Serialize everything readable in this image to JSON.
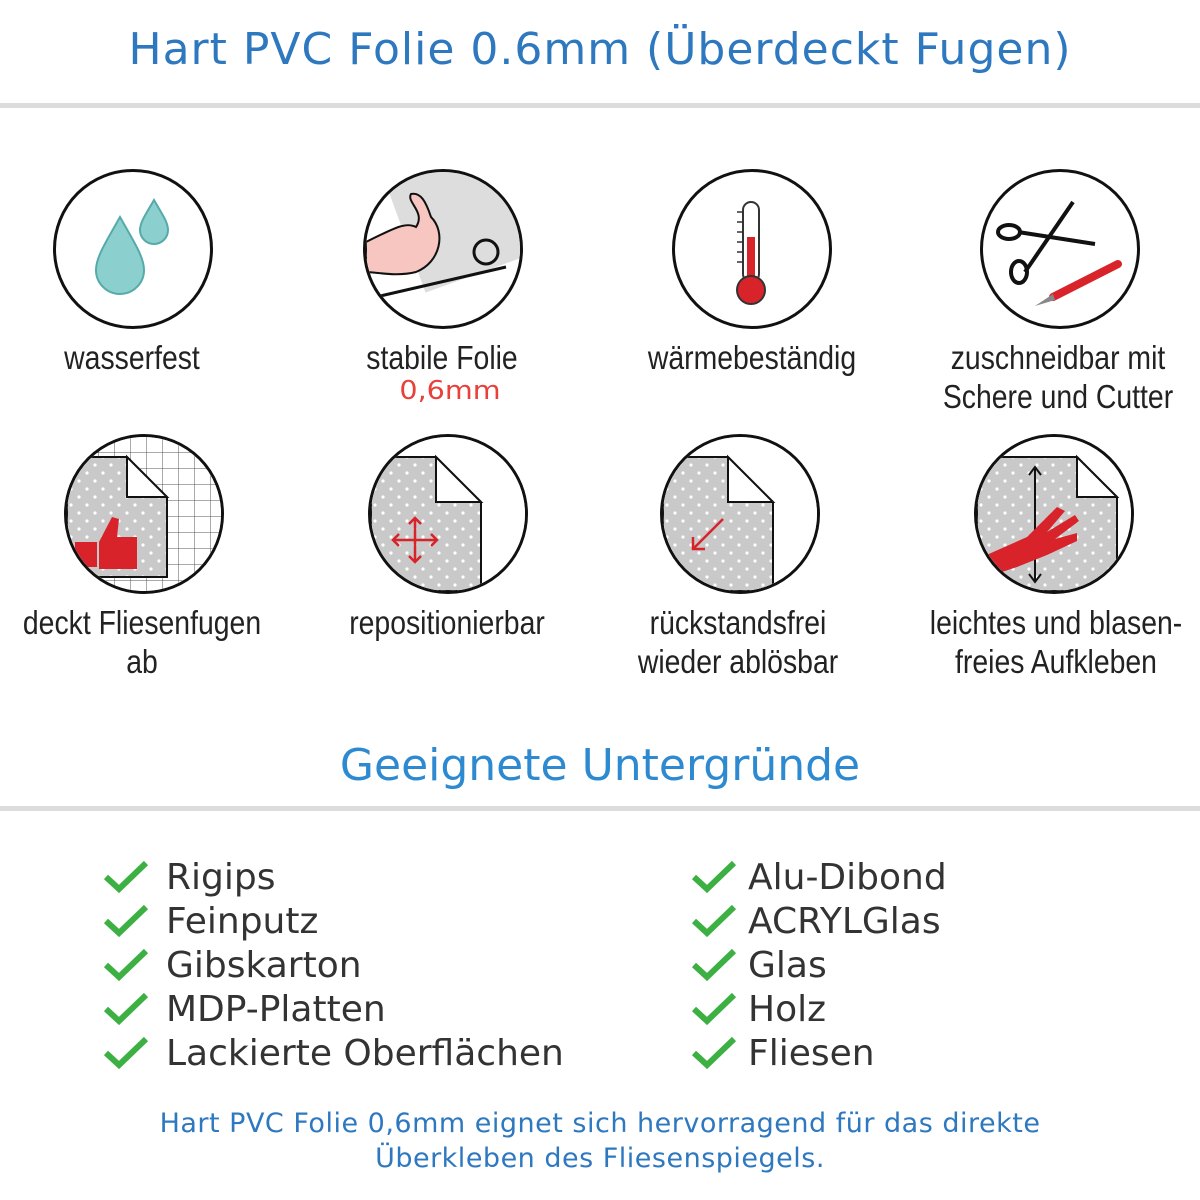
{
  "header": {
    "title": "Hart PVC Folie 0.6mm (Überdeckt Fugen)"
  },
  "features": [
    {
      "icon": "water-drops-icon",
      "label": "wasserfest"
    },
    {
      "icon": "strong-arm-icon",
      "label": "stabile Folie",
      "sublabel": "0,6mm"
    },
    {
      "icon": "thermometer-icon",
      "label": "wärmebeständig"
    },
    {
      "icon": "scissors-cutter-icon",
      "label_line1": "zuschneidbar mit",
      "label_line2": "Schere und Cutter"
    },
    {
      "icon": "thumbs-up-tile-icon",
      "label": "deckt Fliesenfugen ab"
    },
    {
      "icon": "move-arrows-icon",
      "label": "repositionierbar"
    },
    {
      "icon": "peel-arrow-icon",
      "label_line1": "rückstandsfrei",
      "label_line2": "wieder ablösbar"
    },
    {
      "icon": "hand-smoothing-icon",
      "label_line1": "leichtes und blasen-",
      "label_line2": "freies Aufkleben"
    }
  ],
  "surfaces": {
    "title": "Geeignete Untergründe",
    "left": [
      "Rigips",
      "Feinputz",
      "Gibskarton",
      "MDP-Platten",
      "Lackierte Oberflächen"
    ],
    "right": [
      "Alu-Dibond",
      "ACRYLGlas",
      "Glas",
      "Holz",
      "Fliesen"
    ]
  },
  "footer": {
    "line1": "Hart PVC Folie 0,6mm eignet sich hervorragend für das direkte",
    "line2": "Überkleben des Fliesenspiegels."
  },
  "colors": {
    "title": "#2e78c0",
    "accent_red": "#e8403a",
    "check": "#3cb043",
    "water": "#8ccfcf"
  }
}
